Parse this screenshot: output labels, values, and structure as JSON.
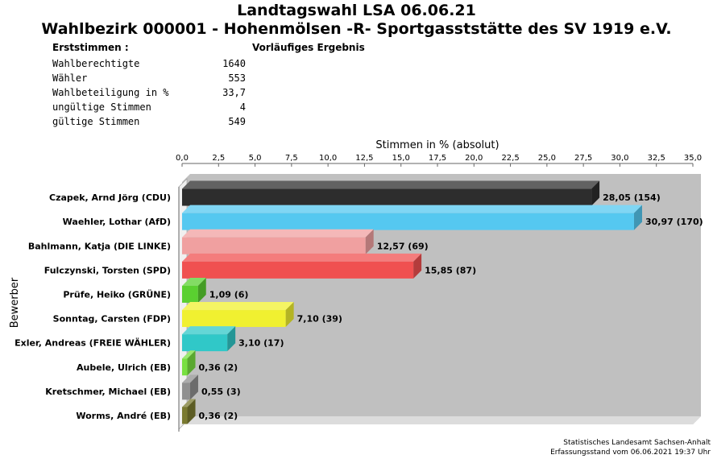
{
  "header": {
    "title": "Landtagswahl LSA 06.06.21",
    "subtitle": "Wahlbezirk 000001 - Hohenmölsen -R- Sportgasststätte des SV 1919 e.V.",
    "section_label": "Erststimmen  :",
    "status": "Vorläufiges Ergebnis"
  },
  "stats": [
    {
      "label": "Wahlberechtigte",
      "value": "1640"
    },
    {
      "label": "Wähler",
      "value": "553"
    },
    {
      "label": "Wahlbeteiligung in %",
      "value": "33,7"
    },
    {
      "label": "ungültige Stimmen",
      "value": "4"
    },
    {
      "label": "gültige Stimmen",
      "value": "549"
    }
  ],
  "footer": {
    "source": "Statistisches Landesamt Sachsen-Anhalt",
    "timestamp": "Erfassungsstand vom 06.06.2021 19:37 Uhr"
  },
  "chart_data": {
    "type": "bar",
    "orientation": "horizontal",
    "xlabel": "Stimmen in % (absolut)",
    "ylabel": "Bewerber",
    "xlim": [
      0,
      35
    ],
    "xticks": [
      "0,0",
      "2,5",
      "5,0",
      "7,5",
      "10,0",
      "12,5",
      "15,0",
      "17,5",
      "20,0",
      "22,5",
      "25,0",
      "27,5",
      "30,0",
      "32,5",
      "35,0"
    ],
    "grid": false,
    "categories": [
      "Czapek, Arnd Jörg (CDU)",
      "Waehler, Lothar (AfD)",
      "Bahlmann, Katja (DIE LINKE)",
      "Fulczynski, Torsten (SPD)",
      "Prüfe, Heiko (GRÜNE)",
      "Sonntag, Carsten (FDP)",
      "Exler, Andreas (FREIE WÄHLER)",
      "Aubele, Ulrich (EB)",
      "Kretschmer, Michael (EB)",
      "Worms, André (EB)"
    ],
    "values": [
      28.05,
      30.97,
      12.57,
      15.85,
      1.09,
      7.1,
      3.1,
      0.36,
      0.55,
      0.36
    ],
    "absolute": [
      154,
      170,
      69,
      87,
      6,
      39,
      17,
      2,
      3,
      2
    ],
    "data_labels": [
      "28,05 (154)",
      "30,97 (170)",
      "12,57 (69)",
      "15,85 (87)",
      "1,09 (6)",
      "7,10 (39)",
      "3,10 (17)",
      "0,36 (2)",
      "0,55 (3)",
      "0,36 (2)"
    ],
    "colors": [
      "#2d2d2d",
      "#55c8f0",
      "#f0a0a0",
      "#f05050",
      "#5ad030",
      "#f0f030",
      "#30c8c8",
      "#78e040",
      "#909090",
      "#7a7a30"
    ],
    "plot_background": "#c0c0c0"
  }
}
